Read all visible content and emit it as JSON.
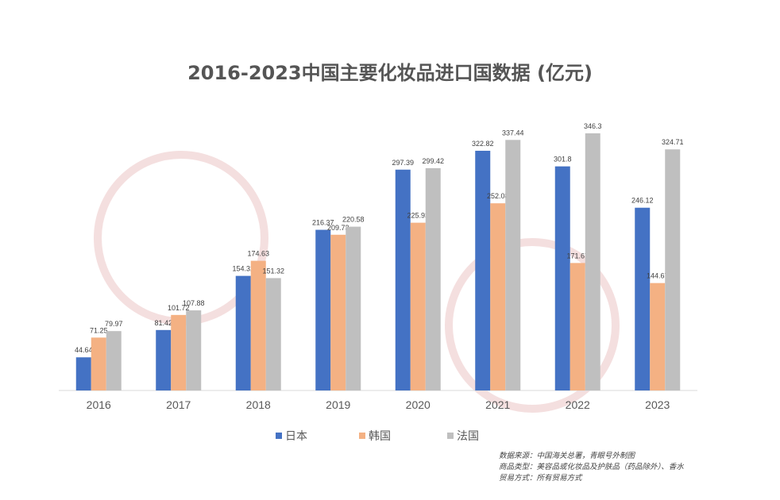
{
  "chart_data": {
    "type": "bar",
    "title": "2016-2023中国主要化妆品进口国数据 (亿元)",
    "categories": [
      "2016",
      "2017",
      "2018",
      "2019",
      "2020",
      "2021",
      "2022",
      "2023"
    ],
    "series": [
      {
        "name": "日本",
        "color": "#4472C4",
        "values": [
          44.64,
          81.42,
          154.32,
          216.37,
          297.39,
          322.82,
          301.8,
          246.12
        ]
      },
      {
        "name": "韩国",
        "color": "#F4B183",
        "values": [
          71.25,
          101.72,
          174.63,
          209.73,
          225.93,
          252.08,
          171.67,
          144.67
        ]
      },
      {
        "name": "法国",
        "color": "#BFBFBF",
        "values": [
          79.97,
          107.88,
          151.32,
          220.58,
          299.42,
          337.44,
          346.3,
          324.71
        ]
      }
    ],
    "ylim": [
      0,
      346.3
    ],
    "grid": false,
    "legend": "bottom",
    "xlabel": "",
    "ylabel": ""
  },
  "notes": [
    "数据来源：中国海关总署，青眼号外制图",
    "商品类型：美容品或化妆品及护肤品（药品除外）、香水",
    "贸易方式：所有贸易方式"
  ]
}
